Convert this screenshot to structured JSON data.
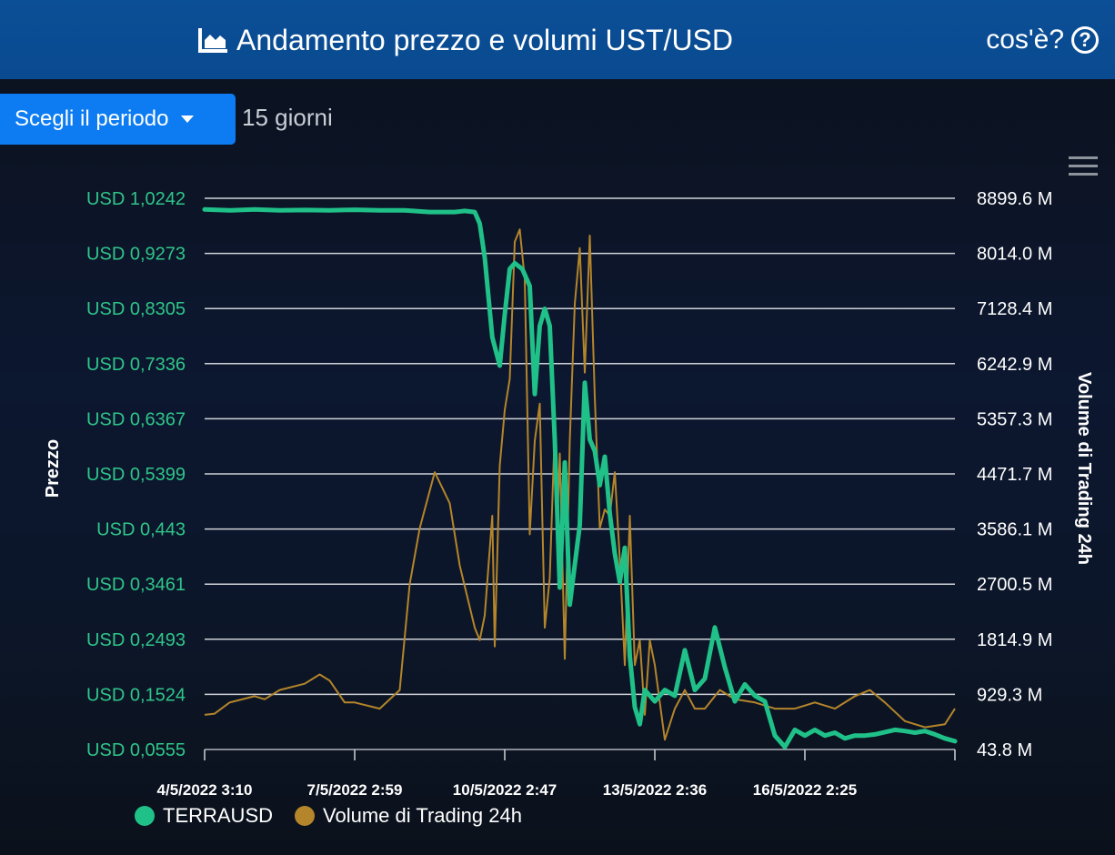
{
  "header": {
    "title": "Andamento prezzo e volumi UST/USD",
    "help_label": "cos'è?",
    "title_icon": "area-chart-icon",
    "help_icon": "question-circle-icon"
  },
  "controls": {
    "period_button_label": "Scegli il periodo",
    "period_value": "15 giorni",
    "menu_icon": "hamburger-menu-icon"
  },
  "colors": {
    "header_bg": "#0b4f96",
    "button_bg": "#0d7cf2",
    "price_series": "#20c188",
    "volume_series": "#b4852a",
    "left_axis_text": "#2fc68a"
  },
  "chart_data": {
    "type": "line",
    "ylabel_left": "Prezzo",
    "ylabel_right": "Volume di Trading 24h",
    "y_left_ticks": [
      "USD 1,0242",
      "USD 0,9273",
      "USD 0,8305",
      "USD 0,7336",
      "USD 0,6367",
      "USD 0,5399",
      "USD 0,443",
      "USD 0,3461",
      "USD 0,2493",
      "USD 0,1524",
      "USD 0,0555"
    ],
    "y_right_ticks": [
      "8899.6 M",
      "8014.0 M",
      "7128.4 M",
      "6242.9 M",
      "5357.3 M",
      "4471.7 M",
      "3586.1 M",
      "2700.5 M",
      "1814.9 M",
      "929.3 M",
      "43.8 M"
    ],
    "x_ticks": [
      "4/5/2022 3:10",
      "7/5/2022 2:59",
      "10/5/2022 2:47",
      "13/5/2022 2:36",
      "16/5/2022 2:25"
    ],
    "ylim_left": [
      0.0555,
      1.0242
    ],
    "ylim_right": [
      43.8,
      8899.6
    ],
    "x_unit": "days since 4/5/2022 3:10",
    "xlim": [
      0,
      15
    ],
    "legend_position": "bottom-left",
    "series": [
      {
        "name": "TERRAUSD",
        "axis": "left",
        "x": [
          0,
          0.5,
          1,
          1.5,
          2,
          2.5,
          3,
          3.5,
          4,
          4.5,
          5,
          5.2,
          5.4,
          5.5,
          5.6,
          5.75,
          5.9,
          6.0,
          6.1,
          6.2,
          6.35,
          6.5,
          6.6,
          6.7,
          6.8,
          6.9,
          7.0,
          7.1,
          7.2,
          7.3,
          7.4,
          7.5,
          7.6,
          7.7,
          7.8,
          7.9,
          8.0,
          8.1,
          8.2,
          8.3,
          8.4,
          8.5,
          8.6,
          8.7,
          8.8,
          9.0,
          9.2,
          9.4,
          9.6,
          9.8,
          10.0,
          10.2,
          10.4,
          10.6,
          10.8,
          11.0,
          11.2,
          11.4,
          11.6,
          11.8,
          12.0,
          12.2,
          12.4,
          12.6,
          12.8,
          13.0,
          13.2,
          13.4,
          13.6,
          13.8,
          14.0,
          14.2,
          14.4,
          14.6,
          14.8,
          15.0
        ],
        "values": [
          1.0045,
          1.003,
          1.0045,
          1.003,
          1.0035,
          1.003,
          1.004,
          1.003,
          1.003,
          1.0,
          1.0,
          1.002,
          1.0,
          0.98,
          0.92,
          0.78,
          0.73,
          0.82,
          0.9,
          0.91,
          0.9,
          0.87,
          0.68,
          0.8,
          0.83,
          0.8,
          0.6,
          0.34,
          0.56,
          0.31,
          0.38,
          0.45,
          0.7,
          0.6,
          0.58,
          0.52,
          0.57,
          0.47,
          0.4,
          0.35,
          0.41,
          0.22,
          0.13,
          0.1,
          0.16,
          0.14,
          0.16,
          0.15,
          0.23,
          0.16,
          0.18,
          0.27,
          0.2,
          0.14,
          0.17,
          0.15,
          0.14,
          0.08,
          0.06,
          0.09,
          0.08,
          0.09,
          0.08,
          0.085,
          0.075,
          0.08,
          0.08,
          0.082,
          0.086,
          0.09,
          0.088,
          0.085,
          0.088,
          0.082,
          0.075,
          0.07
        ]
      },
      {
        "name": "Volume di Trading 24h",
        "axis": "right",
        "x": [
          0,
          0.2,
          0.5,
          1,
          1.2,
          1.5,
          2,
          2.3,
          2.5,
          2.8,
          3,
          3.5,
          3.9,
          4.1,
          4.3,
          4.6,
          4.9,
          5.1,
          5.4,
          5.5,
          5.6,
          5.75,
          5.8,
          5.9,
          6.0,
          6.1,
          6.2,
          6.3,
          6.4,
          6.5,
          6.6,
          6.7,
          6.8,
          6.9,
          7.0,
          7.05,
          7.1,
          7.2,
          7.3,
          7.4,
          7.5,
          7.6,
          7.7,
          7.8,
          7.9,
          8.0,
          8.1,
          8.2,
          8.3,
          8.4,
          8.5,
          8.6,
          8.7,
          8.8,
          8.9,
          9.0,
          9.2,
          9.4,
          9.6,
          9.8,
          10.0,
          10.3,
          10.6,
          11.0,
          11.4,
          11.8,
          12.2,
          12.6,
          13.0,
          13.3,
          13.6,
          14.0,
          14.4,
          14.8,
          15.0
        ],
        "values": [
          600,
          620,
          800,
          900,
          850,
          1000,
          1100,
          1250,
          1150,
          800,
          800,
          700,
          1000,
          2700,
          3600,
          4500,
          4000,
          3000,
          2000,
          1800,
          2200,
          3800,
          1700,
          4600,
          5500,
          6000,
          8200,
          8400,
          7600,
          3500,
          5000,
          5600,
          2000,
          2800,
          5200,
          3700,
          4800,
          1500,
          5000,
          7200,
          8100,
          6100,
          8300,
          5700,
          3600,
          3900,
          3800,
          4500,
          3100,
          1400,
          3800,
          1400,
          1800,
          600,
          1800,
          1400,
          200,
          700,
          1000,
          700,
          700,
          1000,
          850,
          800,
          700,
          700,
          800,
          700,
          900,
          1000,
          800,
          500,
          400,
          450,
          700
        ]
      }
    ]
  }
}
